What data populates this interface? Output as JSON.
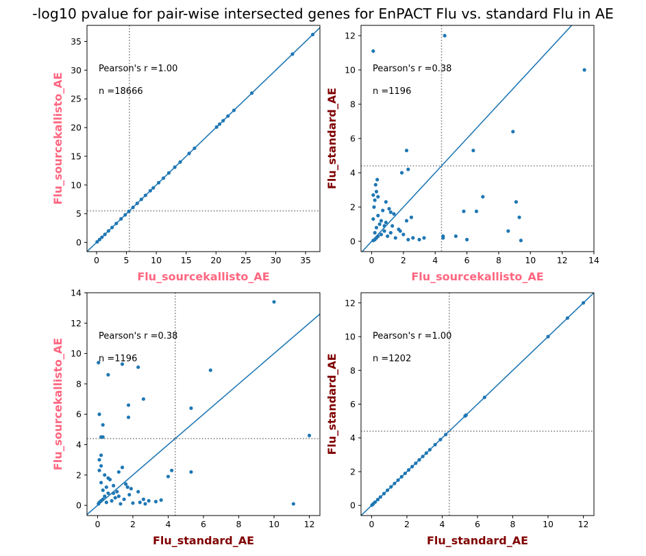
{
  "title": "-log10 pvalue for pair-wise intersected genes for EnPACT Flu vs. standard Flu in AE",
  "colors": {
    "point": "#1f77b4",
    "line": "#1f77b4",
    "threshold": "#808080",
    "label_sourcekallisto": "#ff6680",
    "label_standard": "#800000"
  },
  "chart_data": [
    {
      "type": "scatter",
      "xlabel": "Flu_sourcekallisto_AE",
      "ylabel": "Flu_sourcekallisto_AE",
      "xlabel_color": "#ff6680",
      "ylabel_color": "#ff6680",
      "xlim": [
        -1.6,
        37.4
      ],
      "ylim": [
        -1.6,
        37.8
      ],
      "xticks": [
        0,
        5,
        10,
        15,
        20,
        25,
        30,
        35
      ],
      "yticks": [
        0,
        5,
        10,
        15,
        20,
        25,
        30,
        35
      ],
      "xthreshold": 5.5,
      "ythreshold": 5.5,
      "fit_line": "y = x",
      "annotations": [
        "Pearson's r =1.00",
        "n =18666"
      ],
      "x": [
        0.1,
        0.5,
        0.9,
        1.4,
        2.0,
        2.6,
        3.3,
        4.1,
        4.8,
        5.4,
        6.1,
        6.8,
        7.5,
        8.2,
        9.0,
        9.5,
        10.4,
        11.2,
        12.1,
        13.1,
        14.0,
        15.5,
        16.4,
        20.1,
        20.6,
        21.2,
        22.0,
        23.0,
        26.0,
        32.8,
        36.2
      ],
      "y": [
        0.1,
        0.5,
        0.9,
        1.4,
        2.0,
        2.6,
        3.3,
        4.1,
        4.8,
        5.4,
        6.1,
        6.8,
        7.5,
        8.2,
        9.0,
        9.5,
        10.4,
        11.2,
        12.1,
        13.1,
        14.0,
        15.5,
        16.4,
        20.1,
        20.6,
        21.2,
        22.0,
        23.0,
        26.0,
        32.8,
        36.2
      ]
    },
    {
      "type": "scatter",
      "xlabel": "Flu_sourcekallisto_AE",
      "ylabel": "Flu_standard_AE",
      "xlabel_color": "#ff6680",
      "ylabel_color": "#800000",
      "xlim": [
        -0.67,
        14.0
      ],
      "ylim": [
        -0.6,
        12.6
      ],
      "xticks": [
        0,
        2,
        4,
        6,
        8,
        10,
        12,
        14
      ],
      "yticks": [
        0,
        2,
        4,
        6,
        8,
        10,
        12
      ],
      "xthreshold": 4.4,
      "ythreshold": 4.4,
      "fit_line": "y = x",
      "annotations": [
        "Pearson's r =0.38",
        "n =1196"
      ],
      "x": [
        0.1,
        0.2,
        0.3,
        0.4,
        0.2,
        0.6,
        0.8,
        1.0,
        1.2,
        1.5,
        1.7,
        2.0,
        2.3,
        2.6,
        3.0,
        3.3,
        0.3,
        0.5,
        0.9,
        1.3,
        1.8,
        0.1,
        0.4,
        0.7,
        0.2,
        0.3,
        0.15,
        0.25,
        0.35,
        1.1,
        1.4,
        2.2,
        2.5,
        0.6,
        0.8,
        0.1,
        2.3,
        2.2,
        1.9,
        1.2,
        0.9,
        0.4,
        4.5,
        4.5,
        5.3,
        5.8,
        6.0,
        6.4,
        6.6,
        7.0,
        8.6,
        8.9,
        9.1,
        9.3,
        9.4,
        13.4,
        0.1,
        4.6
      ],
      "y": [
        0.05,
        0.1,
        0.2,
        0.3,
        0.5,
        0.4,
        0.6,
        0.3,
        0.5,
        0.2,
        0.7,
        0.4,
        0.1,
        0.2,
        0.1,
        0.2,
        0.8,
        1.0,
        1.1,
        0.9,
        0.6,
        1.3,
        1.5,
        1.8,
        2.4,
        2.9,
        2.0,
        3.3,
        3.6,
        1.9,
        1.6,
        1.2,
        1.4,
        1.2,
        0.9,
        2.7,
        4.2,
        5.3,
        4.0,
        1.7,
        2.3,
        2.6,
        0.3,
        0.2,
        0.3,
        1.75,
        0.1,
        5.3,
        1.75,
        2.6,
        0.6,
        6.4,
        2.3,
        1.4,
        0.05,
        10.0,
        11.1,
        12.0
      ]
    },
    {
      "type": "scatter",
      "xlabel": "Flu_standard_AE",
      "ylabel": "Flu_sourcekallisto_AE",
      "xlabel_color": "#800000",
      "ylabel_color": "#ff6680",
      "xlim": [
        -0.6,
        12.6
      ],
      "ylim": [
        -0.67,
        14.0
      ],
      "xticks": [
        0,
        2,
        4,
        6,
        8,
        10,
        12
      ],
      "yticks": [
        0,
        2,
        4,
        6,
        8,
        10,
        12,
        14
      ],
      "xthreshold": 4.4,
      "ythreshold": 4.4,
      "fit_line": "y = x",
      "annotations": [
        "Pearson's r =0.38",
        "n =1196"
      ],
      "x": [
        0.05,
        0.1,
        0.2,
        0.3,
        0.5,
        0.4,
        0.6,
        0.3,
        0.5,
        0.2,
        0.7,
        0.4,
        0.1,
        0.2,
        0.1,
        0.2,
        0.8,
        1.0,
        1.1,
        0.9,
        0.6,
        1.3,
        1.5,
        1.8,
        2.4,
        2.9,
        2.0,
        3.3,
        3.6,
        1.9,
        1.6,
        1.2,
        1.4,
        1.2,
        0.9,
        2.7,
        4.2,
        5.3,
        4.0,
        1.7,
        2.3,
        2.6,
        0.3,
        0.2,
        0.3,
        1.75,
        0.1,
        5.3,
        1.75,
        2.6,
        0.6,
        6.4,
        2.3,
        1.4,
        0.05,
        10.0,
        11.1,
        12.0
      ],
      "y": [
        0.1,
        0.2,
        0.3,
        0.4,
        0.2,
        0.6,
        0.8,
        1.0,
        1.2,
        1.5,
        1.7,
        2.0,
        2.3,
        2.6,
        3.0,
        3.3,
        0.3,
        0.5,
        0.9,
        1.3,
        1.8,
        0.1,
        0.4,
        0.7,
        0.2,
        0.3,
        0.15,
        0.25,
        0.35,
        1.1,
        1.4,
        2.2,
        2.5,
        0.6,
        0.8,
        0.1,
        2.3,
        2.2,
        1.9,
        1.2,
        0.9,
        0.4,
        4.5,
        4.5,
        5.3,
        5.8,
        6.0,
        6.4,
        6.6,
        7.0,
        8.6,
        8.9,
        9.1,
        9.3,
        9.4,
        13.4,
        0.1,
        4.6
      ]
    },
    {
      "type": "scatter",
      "xlabel": "Flu_standard_AE",
      "ylabel": "Flu_standard_AE",
      "xlabel_color": "#800000",
      "ylabel_color": "#800000",
      "xlim": [
        -0.6,
        12.6
      ],
      "ylim": [
        -0.6,
        12.6
      ],
      "xticks": [
        0,
        2,
        4,
        6,
        8,
        10,
        12
      ],
      "yticks": [
        0,
        2,
        4,
        6,
        8,
        10,
        12
      ],
      "xthreshold": 4.4,
      "ythreshold": 4.4,
      "fit_line": "y = x",
      "annotations": [
        "Pearson's r =1.00",
        "n =1202"
      ],
      "x": [
        0.02,
        0.1,
        0.2,
        0.35,
        0.5,
        0.7,
        0.9,
        1.1,
        1.3,
        1.5,
        1.7,
        1.9,
        2.1,
        2.3,
        2.5,
        2.7,
        2.9,
        3.1,
        3.3,
        3.6,
        3.9,
        4.2,
        5.3,
        5.35,
        6.4,
        10.0,
        11.1,
        12.0
      ],
      "y": [
        0.02,
        0.1,
        0.2,
        0.35,
        0.5,
        0.7,
        0.9,
        1.1,
        1.3,
        1.5,
        1.7,
        1.9,
        2.1,
        2.3,
        2.5,
        2.7,
        2.9,
        3.1,
        3.3,
        3.6,
        3.9,
        4.2,
        5.3,
        5.35,
        6.4,
        10.0,
        11.1,
        12.0
      ]
    }
  ]
}
